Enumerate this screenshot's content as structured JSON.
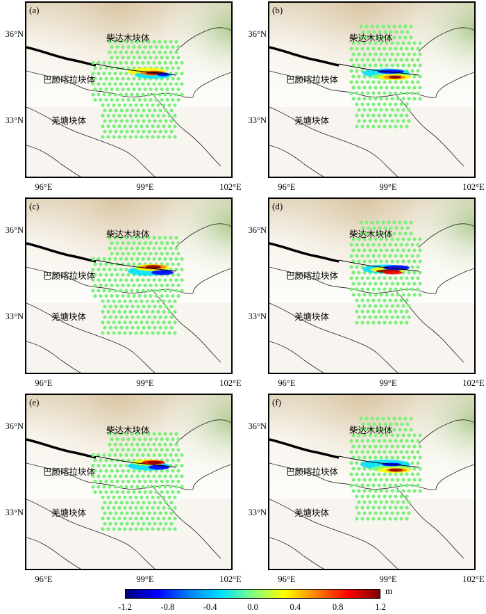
{
  "panels": [
    {
      "letter": "(a)",
      "grid": "a",
      "slip": "a"
    },
    {
      "letter": "(b)",
      "grid": "b",
      "slip": "b"
    },
    {
      "letter": "(c)",
      "grid": "a",
      "slip": "c"
    },
    {
      "letter": "(d)",
      "grid": "b",
      "slip": "d"
    },
    {
      "letter": "(e)",
      "grid": "a",
      "slip": "e"
    },
    {
      "letter": "(f)",
      "grid": "b",
      "slip": "f"
    }
  ],
  "axes": {
    "lat_labels": [
      "36°N",
      "33°N"
    ],
    "lon_labels": [
      "96°E",
      "99°E",
      "102°E"
    ]
  },
  "place_labels": {
    "qaidam": "柴达木块体",
    "bayan_har": "巴颜喀拉块体",
    "qiangtang": "羌塘块体"
  },
  "colorbar": {
    "unit": "m",
    "ticks": [
      "-1.2",
      "-0.8",
      "-0.4",
      "0.0",
      "0.4",
      "0.8",
      "1.2"
    ],
    "colors": [
      "#000080",
      "#0000ff",
      "#0080ff",
      "#00e0ff",
      "#80ff80",
      "#ffff00",
      "#ff8000",
      "#ff0000",
      "#800000"
    ]
  },
  "colors": {
    "point_green": "#7cf07c",
    "terrain_tan": "#d8c4a0",
    "terrain_green": "#a9c98a",
    "fault": "#000000"
  }
}
